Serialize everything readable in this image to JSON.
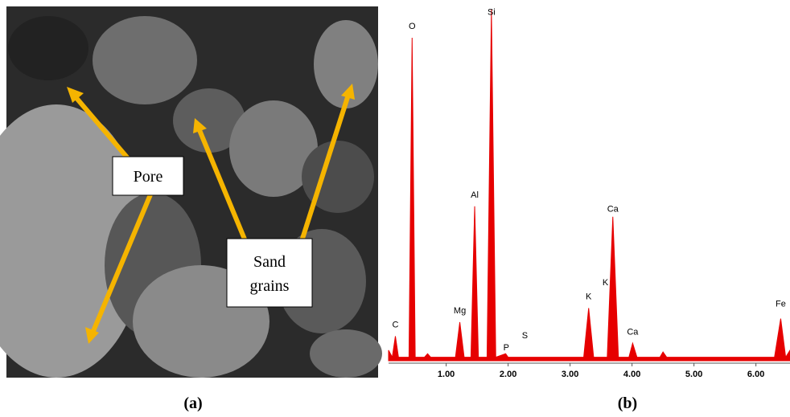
{
  "image_panel": {
    "caption": "(a)",
    "labels": {
      "pore": "Pore",
      "sand_grains": [
        "Sand",
        "grains"
      ]
    }
  },
  "chart_data": {
    "type": "area",
    "caption": "(b)",
    "color": "#e60000",
    "x": [
      0.07,
      0.13,
      0.18,
      0.23,
      0.4,
      0.45,
      0.5,
      0.65,
      0.7,
      0.75,
      1.15,
      1.22,
      1.29,
      1.4,
      1.46,
      1.52,
      1.66,
      1.73,
      1.8,
      1.96,
      2.0,
      3.22,
      3.3,
      3.38,
      3.6,
      3.69,
      3.78,
      3.95,
      4.01,
      4.08,
      4.45,
      4.5,
      4.56,
      6.3,
      6.4,
      6.48,
      6.55
    ],
    "values": [
      3,
      1,
      7,
      1,
      1,
      92,
      1,
      1,
      2,
      1,
      1,
      11,
      1,
      1,
      44,
      1,
      1,
      100,
      1,
      2,
      1,
      1,
      15,
      1,
      1,
      41,
      1,
      1,
      5,
      1,
      1,
      2.5,
      1,
      1,
      12,
      1,
      3
    ],
    "xlim": [
      0.07,
      6.55
    ],
    "ylim": [
      0,
      100
    ],
    "xticks": [
      {
        "value": 1,
        "label": "1.00"
      },
      {
        "value": 2,
        "label": "2.00"
      },
      {
        "value": 3,
        "label": "3.00"
      },
      {
        "value": 4,
        "label": "4.00"
      },
      {
        "value": 5,
        "label": "5.00"
      },
      {
        "value": 6,
        "label": "6.00"
      }
    ],
    "peak_labels": [
      {
        "text": "C",
        "x": 0.18,
        "y": 9
      },
      {
        "text": "O",
        "x": 0.45,
        "y": 94
      },
      {
        "text": "Mg",
        "x": 1.22,
        "y": 13
      },
      {
        "text": "Al",
        "x": 1.46,
        "y": 46
      },
      {
        "text": "Si",
        "x": 1.73,
        "y": 98
      },
      {
        "text": "P",
        "x": 1.97,
        "y": 2.5
      },
      {
        "text": "S",
        "x": 2.27,
        "y": 6
      },
      {
        "text": "K",
        "x": 3.3,
        "y": 17
      },
      {
        "text": "K",
        "x": 3.57,
        "y": 21
      },
      {
        "text": "Ca",
        "x": 3.69,
        "y": 42
      },
      {
        "text": "Ca",
        "x": 4.01,
        "y": 7
      },
      {
        "text": "Fe",
        "x": 6.4,
        "y": 15
      }
    ]
  }
}
